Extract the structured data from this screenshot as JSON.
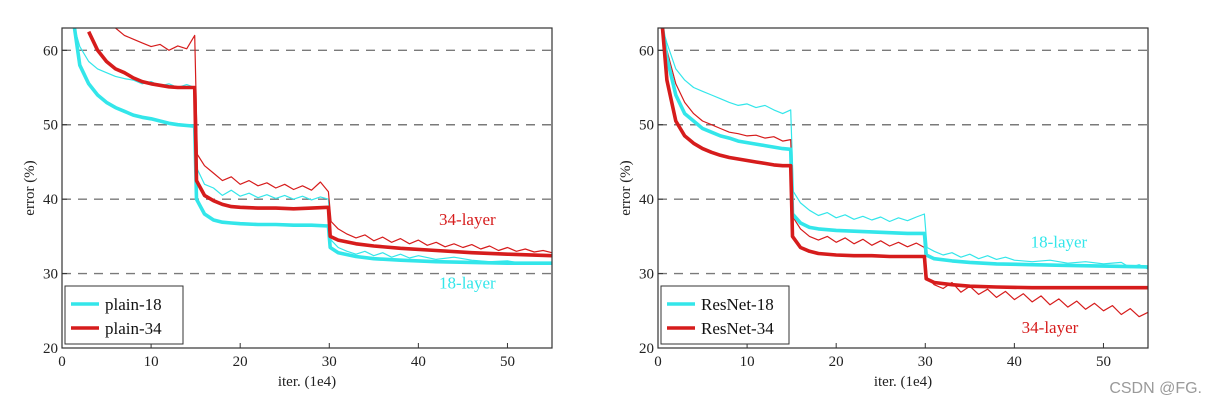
{
  "watermark": "CSDN @FG.",
  "colors": {
    "cyan": "#33e6ea",
    "red": "#d61c1c",
    "grid": "#7a7a7a",
    "axis": "#333333"
  },
  "chart_data": [
    {
      "type": "line",
      "id": "plain",
      "xlabel": "iter. (1e4)",
      "ylabel": "error (%)",
      "xlim": [
        0,
        55
      ],
      "ylim": [
        20,
        63
      ],
      "xticks": [
        0,
        10,
        20,
        30,
        40,
        50
      ],
      "xtick_labels": [
        "0",
        "10",
        "20",
        "30",
        "40",
        "50"
      ],
      "yticks": [
        20,
        30,
        40,
        50,
        60
      ],
      "ytick_labels": [
        "20",
        "30",
        "40",
        "50",
        "60"
      ],
      "grid": "horizontal dashed at 30, 40, 50, 60",
      "legend": {
        "position": "bottom-left",
        "entries": [
          "plain-18",
          "plain-34"
        ]
      },
      "annotations": [
        {
          "text": "34-layer",
          "x": 45.5,
          "y": 36.5,
          "color": "#d61c1c"
        },
        {
          "text": "18-layer",
          "x": 45.5,
          "y": 28.0,
          "color": "#33e6ea"
        }
      ],
      "series": [
        {
          "name": "plain-18",
          "role": "train",
          "color": "#33e6ea",
          "x": [
            1.4,
            2,
            3,
            4,
            5,
            6,
            7,
            8,
            9,
            10,
            11,
            12,
            13,
            14,
            14.9,
            15.1,
            16,
            17,
            18,
            19,
            20,
            22,
            24,
            26,
            28,
            29.9,
            30.1,
            31,
            33,
            35,
            38,
            42,
            46,
            50,
            55
          ],
          "y": [
            63,
            58,
            55.5,
            54,
            53,
            52.3,
            51.8,
            51.3,
            51,
            50.8,
            50.5,
            50.2,
            50,
            49.9,
            49.8,
            40,
            38,
            37.2,
            36.9,
            36.8,
            36.7,
            36.6,
            36.6,
            36.5,
            36.5,
            36.4,
            33.5,
            32.8,
            32.3,
            32.0,
            31.8,
            31.6,
            31.5,
            31.4,
            31.4
          ]
        },
        {
          "name": "plain-18",
          "role": "val",
          "color": "#33e6ea",
          "x": [
            1.4,
            2,
            3,
            4,
            5,
            6,
            7,
            8,
            9,
            10,
            11,
            12,
            13,
            14,
            14.9,
            15.2,
            16,
            17,
            18,
            19,
            20,
            21,
            22,
            23,
            24,
            25,
            26,
            27,
            28,
            29,
            29.9,
            30.2,
            31,
            32,
            33,
            34,
            35,
            36,
            37,
            38,
            39,
            40,
            42,
            44,
            46,
            48,
            50,
            52,
            55
          ],
          "y": [
            63,
            60.5,
            58.5,
            57.5,
            57,
            56.5,
            56.2,
            56,
            55.5,
            55.8,
            55.2,
            55.5,
            55,
            55.4,
            55,
            44,
            42,
            41.5,
            40.5,
            41.2,
            40.4,
            40.8,
            40.2,
            40.6,
            40.1,
            40.5,
            40,
            40.4,
            39.9,
            40.3,
            40,
            34.5,
            33.5,
            33,
            32.6,
            33,
            32.4,
            32.8,
            32.2,
            32.6,
            32.1,
            32.4,
            31.9,
            32.2,
            31.8,
            31.6,
            31.7,
            31.3,
            31.4
          ]
        },
        {
          "name": "plain-34",
          "role": "train",
          "color": "#d61c1c",
          "x": [
            3,
            4,
            5,
            6,
            7,
            8,
            9,
            10,
            11,
            12,
            13,
            14,
            14.9,
            15.1,
            16,
            17,
            18,
            19,
            20,
            22,
            24,
            26,
            28,
            29.9,
            30.1,
            31,
            33,
            35,
            38,
            42,
            46,
            50,
            55
          ],
          "y": [
            62.5,
            60,
            58.5,
            57.5,
            57,
            56.3,
            55.8,
            55.5,
            55.3,
            55.1,
            55,
            55,
            55,
            42.5,
            40.5,
            39.8,
            39.3,
            39,
            38.9,
            38.8,
            38.8,
            38.7,
            38.8,
            38.9,
            35,
            34.5,
            34,
            33.7,
            33.4,
            33.1,
            32.8,
            32.6,
            32.4
          ]
        },
        {
          "name": "plain-34",
          "role": "val",
          "color": "#d61c1c",
          "x": [
            6,
            7,
            8,
            9,
            10,
            11,
            12,
            13,
            14,
            14.9,
            15.2,
            16,
            17,
            18,
            19,
            20,
            21,
            22,
            23,
            24,
            25,
            26,
            27,
            28,
            29,
            29.9,
            30.2,
            31,
            32,
            33,
            34,
            35,
            36,
            37,
            38,
            39,
            40,
            41,
            42,
            43,
            44,
            45,
            46,
            47,
            48,
            49,
            50,
            51,
            52,
            53,
            54,
            55
          ],
          "y": [
            63,
            62,
            61.5,
            61,
            60.5,
            60.8,
            60,
            60.6,
            60.2,
            62,
            46,
            44.5,
            43.5,
            42.5,
            43,
            42,
            42.5,
            41.8,
            42.2,
            41.5,
            42,
            41.3,
            41.8,
            41.2,
            42.3,
            41,
            37,
            36,
            35.3,
            34.8,
            35.2,
            34.4,
            34.9,
            34.2,
            34.7,
            34,
            34.5,
            33.8,
            34.2,
            33.6,
            34,
            33.5,
            33.9,
            33.3,
            33.7,
            33.1,
            33.5,
            33,
            33.3,
            32.9,
            33.1,
            32.8
          ]
        }
      ]
    },
    {
      "type": "line",
      "id": "resnet",
      "xlabel": "iter. (1e4)",
      "ylabel": "error (%)",
      "xlim": [
        0,
        55
      ],
      "ylim": [
        20,
        63
      ],
      "xticks": [
        0,
        10,
        20,
        30,
        40,
        50
      ],
      "xtick_labels": [
        "0",
        "10",
        "20",
        "30",
        "40",
        "50"
      ],
      "yticks": [
        20,
        30,
        40,
        50,
        60
      ],
      "ytick_labels": [
        "20",
        "30",
        "40",
        "50",
        "60"
      ],
      "grid": "horizontal dashed at 30, 40, 50, 60",
      "legend": {
        "position": "bottom-left",
        "entries": [
          "ResNet-18",
          "ResNet-34"
        ]
      },
      "annotations": [
        {
          "text": "18-layer",
          "x": 45,
          "y": 33.5,
          "color": "#33e6ea"
        },
        {
          "text": "34-layer",
          "x": 44,
          "y": 22.0,
          "color": "#d61c1c"
        }
      ],
      "series": [
        {
          "name": "ResNet-18",
          "role": "train",
          "color": "#33e6ea",
          "x": [
            0.5,
            1,
            2,
            3,
            4,
            5,
            6,
            7,
            8,
            9,
            10,
            11,
            12,
            13,
            14,
            14.9,
            15.1,
            16,
            17,
            18,
            20,
            22,
            24,
            26,
            28,
            29.9,
            30.1,
            31,
            33,
            35,
            38,
            42,
            46,
            50,
            55
          ],
          "y": [
            63,
            59,
            54,
            51.5,
            50.5,
            49.5,
            49,
            48.5,
            48.2,
            47.8,
            47.6,
            47.4,
            47.2,
            47,
            46.8,
            46.7,
            38,
            36.8,
            36.2,
            36,
            35.8,
            35.7,
            35.6,
            35.5,
            35.4,
            35.4,
            32.5,
            32,
            31.7,
            31.5,
            31.3,
            31.2,
            31.1,
            31.0,
            30.9
          ]
        },
        {
          "name": "ResNet-18",
          "role": "val",
          "color": "#33e6ea",
          "x": [
            0.5,
            1,
            2,
            3,
            4,
            5,
            6,
            7,
            8,
            9,
            10,
            11,
            12,
            13,
            14,
            14.9,
            15.2,
            16,
            17,
            18,
            19,
            20,
            21,
            22,
            23,
            24,
            25,
            26,
            27,
            28,
            29,
            29.9,
            30.2,
            31,
            32,
            33,
            34,
            35,
            36,
            37,
            38,
            39,
            40,
            42,
            44,
            46,
            48,
            50,
            52,
            53,
            54,
            55
          ],
          "y": [
            63,
            61,
            57.5,
            56,
            55,
            54.5,
            54,
            53.5,
            53,
            52.6,
            52.8,
            52.3,
            52.6,
            52,
            51.5,
            52,
            41,
            39.5,
            38.5,
            37.8,
            38.2,
            37.5,
            37.9,
            37.3,
            37.7,
            37.2,
            37.6,
            37,
            37.5,
            37.1,
            37.6,
            38,
            33.5,
            33,
            32.5,
            32.8,
            32.2,
            32.6,
            32,
            32.4,
            31.9,
            32.2,
            31.8,
            31.6,
            31.8,
            31.4,
            31.6,
            31.3,
            31.5,
            30.8,
            31.2,
            30.6
          ]
        },
        {
          "name": "ResNet-34",
          "role": "train",
          "color": "#d61c1c",
          "x": [
            0.5,
            1,
            2,
            3,
            4,
            5,
            6,
            7,
            8,
            9,
            10,
            11,
            12,
            13,
            14,
            14.9,
            15.1,
            16,
            17,
            18,
            20,
            22,
            24,
            26,
            28,
            29.9,
            30.1,
            31,
            33,
            35,
            38,
            42,
            46,
            50,
            55
          ],
          "y": [
            63,
            56,
            50.5,
            48.5,
            47.5,
            46.8,
            46.3,
            45.9,
            45.6,
            45.4,
            45.2,
            45,
            44.8,
            44.6,
            44.5,
            44.5,
            35,
            33.5,
            33,
            32.7,
            32.5,
            32.4,
            32.4,
            32.3,
            32.3,
            32.3,
            29.3,
            28.8,
            28.5,
            28.3,
            28.2,
            28.1,
            28.1,
            28.1,
            28.1
          ]
        },
        {
          "name": "ResNet-34",
          "role": "val",
          "color": "#d61c1c",
          "x": [
            0.5,
            1,
            2,
            3,
            4,
            5,
            6,
            7,
            8,
            9,
            10,
            11,
            12,
            13,
            14,
            14.9,
            15.2,
            16,
            17,
            18,
            19,
            20,
            21,
            22,
            23,
            24,
            25,
            26,
            27,
            28,
            29,
            29.9,
            30.2,
            31,
            32,
            33,
            34,
            35,
            36,
            37,
            38,
            39,
            40,
            41,
            42,
            43,
            44,
            45,
            46,
            47,
            48,
            49,
            50,
            51,
            52,
            53,
            54,
            55
          ],
          "y": [
            63,
            60,
            55.5,
            53,
            51.5,
            50.5,
            50,
            49.5,
            49,
            48.8,
            48.5,
            48.6,
            48.2,
            48.4,
            47.8,
            48,
            37.5,
            36,
            35,
            34.5,
            35,
            34.2,
            34.8,
            34,
            34.6,
            33.8,
            34.4,
            33.7,
            34.2,
            33.6,
            34.1,
            33.5,
            29.5,
            28.5,
            28,
            28.8,
            27.5,
            28.3,
            27.2,
            27.9,
            26.8,
            27.6,
            26.5,
            27.3,
            26.2,
            27,
            25.8,
            26.6,
            25.5,
            26.3,
            25.2,
            26,
            25,
            25.7,
            24.5,
            25.3,
            24.2,
            24.8
          ]
        }
      ]
    }
  ]
}
